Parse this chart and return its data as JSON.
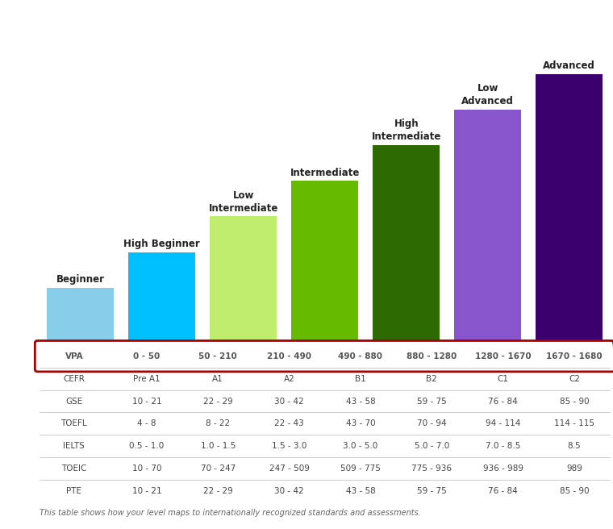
{
  "categories": [
    "Beginner",
    "High Beginner",
    "Low\nIntermediate",
    "Intermediate",
    "High\nIntermediate",
    "Low\nAdvanced",
    "Advanced"
  ],
  "bar_heights": [
    1.5,
    2.5,
    3.5,
    4.5,
    5.5,
    6.5,
    7.5
  ],
  "bar_colors": [
    "#87CEEB",
    "#00BFFF",
    "#BFEE6E",
    "#66BB00",
    "#2D6A00",
    "#8855CC",
    "#3B006E"
  ],
  "bar_width": 0.82,
  "figsize": [
    7.6,
    6.56
  ],
  "dpi": 100,
  "background_color": "#ffffff",
  "table_rows": [
    {
      "label": "VPA",
      "values": [
        "0 - 50",
        "50 - 210",
        "210 - 490",
        "490 - 880",
        "880 - 1280",
        "1280 - 1670",
        "1670 - 1680"
      ],
      "bold": true
    },
    {
      "label": "CEFR",
      "values": [
        "Pre A1",
        "A1",
        "A2",
        "B1",
        "B2",
        "C1",
        "C2"
      ],
      "bold": false
    },
    {
      "label": "GSE",
      "values": [
        "10 - 21",
        "22 - 29",
        "30 - 42",
        "43 - 58",
        "59 - 75",
        "76 - 84",
        "85 - 90"
      ],
      "bold": false
    },
    {
      "label": "TOEFL",
      "values": [
        "4 - 8",
        "8 - 22",
        "22 - 43",
        "43 - 70",
        "70 - 94",
        "94 - 114",
        "114 - 115"
      ],
      "bold": false
    },
    {
      "label": "IELTS",
      "values": [
        "0.5 - 1.0",
        "1.0 - 1.5",
        "1.5 - 3.0",
        "3.0 - 5.0",
        "5.0 - 7.0",
        "7.0 - 8.5",
        "8.5"
      ],
      "bold": false
    },
    {
      "label": "TOEIC",
      "values": [
        "10 - 70",
        "70 - 247",
        "247 - 509",
        "509 - 775",
        "775 - 936",
        "936 - 989",
        "989"
      ],
      "bold": false
    },
    {
      "label": "PTE",
      "values": [
        "10 - 21",
        "22 - 29",
        "30 - 42",
        "43 - 58",
        "59 - 75",
        "76 - 84",
        "85 - 90"
      ],
      "bold": false
    }
  ],
  "footnote": "This table shows how your level maps to internationally recognized standards and assessments.",
  "vpa_row_border_color": "#AA0000",
  "table_line_color": "#cccccc",
  "text_color": "#444444",
  "vpa_label_color": "#555555",
  "label_fontsize": 7.5,
  "vpa_fontsize": 7.5,
  "ylim_max": 9.2
}
